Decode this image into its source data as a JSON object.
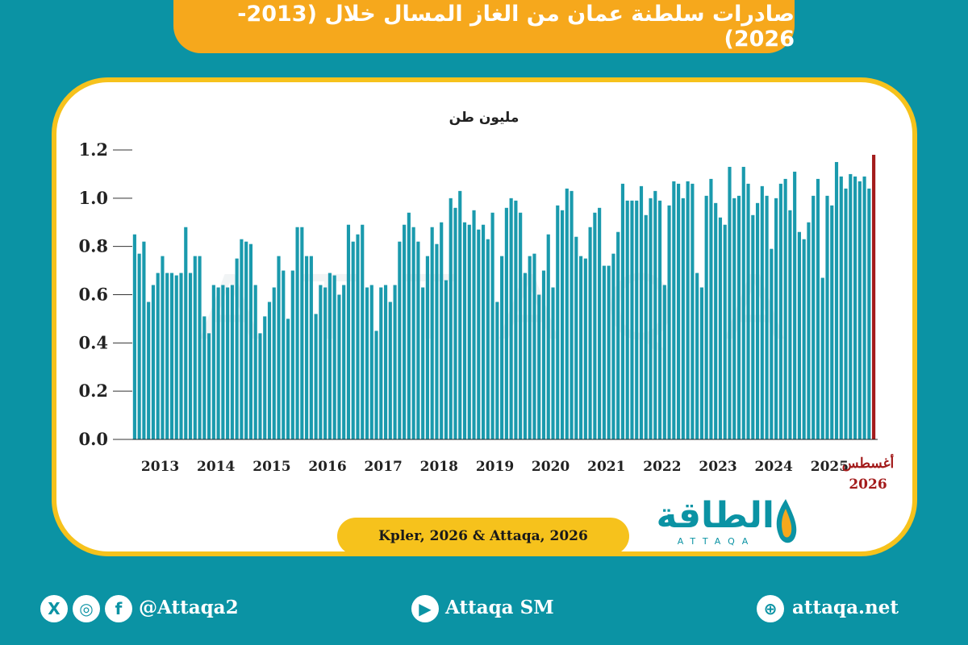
{
  "title": "صادرات سلطنة عمان من الغاز المسال خلال (2013-2026)",
  "source": "Kpler, 2026 & Attaqa, 2026",
  "logo": {
    "arabic": "الطاقة",
    "latin": "ATTAQA"
  },
  "footer": {
    "social_handle": "@Attaqa2",
    "youtube": "Attaqa SM",
    "website": "attaqa.net"
  },
  "colors": {
    "bar": "#1a9aad",
    "highlight": "#a31b1b",
    "banner": "#f6a81c",
    "frame": "#f6c21c",
    "background": "#0b93a4"
  },
  "chart_data": {
    "type": "bar",
    "ylabel": "مليون طن",
    "ylim": [
      0,
      1.2
    ],
    "yticks": [
      "0.0",
      "0.2",
      "0.4",
      "0.6",
      "0.8",
      "1.0",
      "1.2"
    ],
    "year_labels": [
      "2013",
      "2014",
      "2015",
      "2016",
      "2017",
      "2018",
      "2019",
      "2020",
      "2021",
      "2022",
      "2023",
      "2024",
      "2025"
    ],
    "highlight_label": {
      "month": "أغسطس",
      "year": "2026"
    },
    "monthly_values": {
      "2013": [
        0.85,
        0.77,
        0.82,
        0.57,
        0.64,
        0.69,
        0.76,
        0.69,
        0.69,
        0.68,
        0.69,
        0.88
      ],
      "2014": [
        0.69,
        0.76,
        0.76,
        0.51,
        0.44,
        0.64,
        0.63,
        0.64,
        0.63,
        0.64,
        0.75,
        0.83
      ],
      "2015": [
        0.82,
        0.81,
        0.64,
        0.44,
        0.51,
        0.57,
        0.63,
        0.76,
        0.7,
        0.5,
        0.7,
        0.88
      ],
      "2016": [
        0.88,
        0.76,
        0.76,
        0.52,
        0.64,
        0.63,
        0.69,
        0.68,
        0.6,
        0.64,
        0.89,
        0.82
      ],
      "2017": [
        0.85,
        0.89,
        0.63,
        0.64,
        0.45,
        0.63,
        0.64,
        0.57,
        0.64,
        0.82,
        0.89,
        0.94
      ],
      "2018": [
        0.88,
        0.82,
        0.63,
        0.76,
        0.88,
        0.81,
        0.9,
        0.66,
        1.0,
        0.96,
        1.03,
        0.9
      ],
      "2019": [
        0.89,
        0.95,
        0.87,
        0.89,
        0.83,
        0.94,
        0.57,
        0.76,
        0.96,
        1.0,
        0.99,
        0.94
      ],
      "2020": [
        0.69,
        0.76,
        0.77,
        0.6,
        0.7,
        0.85,
        0.63,
        0.97,
        0.95,
        1.04,
        1.03,
        0.84
      ],
      "2021": [
        0.76,
        0.75,
        0.88,
        0.94,
        0.96,
        0.72,
        0.72,
        0.77,
        0.86,
        1.06,
        0.99,
        0.99
      ],
      "2022": [
        0.99,
        1.05,
        0.93,
        1.0,
        1.03,
        0.99,
        0.64,
        0.97,
        1.07,
        1.06,
        1.0,
        1.07
      ],
      "2023": [
        1.06,
        0.69,
        0.63,
        1.01,
        1.08,
        0.98,
        0.92,
        0.89,
        1.13,
        1.0,
        1.01,
        1.13
      ],
      "2024": [
        1.06,
        0.93,
        0.98,
        1.05,
        1.01,
        0.79,
        1.0,
        1.06,
        1.08,
        0.95,
        1.11,
        0.86
      ],
      "2025": [
        0.83,
        0.9,
        1.01,
        1.08,
        0.67,
        1.01,
        0.97,
        1.15,
        1.09,
        1.04,
        1.1,
        1.09
      ],
      "2026": [
        1.07,
        1.09,
        1.04,
        1.18
      ]
    }
  }
}
